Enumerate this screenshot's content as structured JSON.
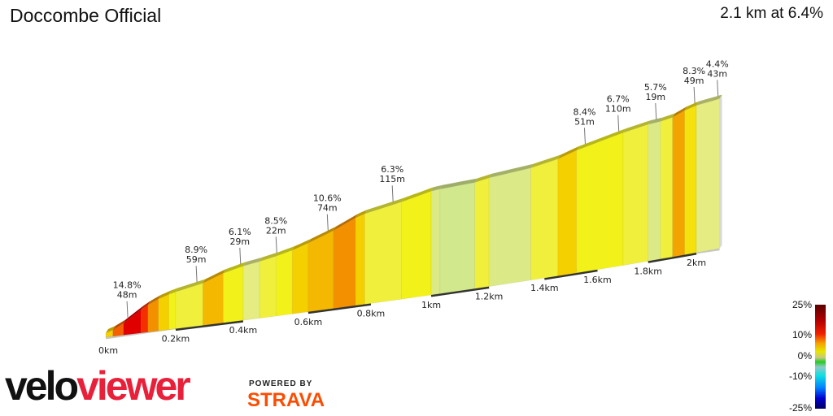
{
  "header": {
    "title": "Doccombe Official",
    "summary": "2.1 km at 6.4%"
  },
  "chart_data": {
    "type": "area",
    "title": "Doccombe Official",
    "xlabel": "",
    "ylabel": "",
    "distance_unit": "km",
    "total_distance_km": 2.1,
    "xlim": [
      0,
      2.1
    ],
    "x_ticks": [
      "0km",
      "0.2km",
      "0.4km",
      "0.6km",
      "0.8km",
      "1km",
      "1.2km",
      "1.4km",
      "1.6km",
      "1.8km",
      "2km"
    ],
    "x_tick_values": [
      0,
      0.2,
      0.4,
      0.6,
      0.8,
      1.0,
      1.2,
      1.4,
      1.6,
      1.8,
      2.0
    ],
    "segments": [
      {
        "from": 0,
        "to": 0.02,
        "grade": 8
      },
      {
        "from": 0.02,
        "to": 0.05,
        "grade": 12
      },
      {
        "from": 0.05,
        "to": 0.1,
        "grade": 16
      },
      {
        "from": 0.1,
        "to": 0.12,
        "grade": 14
      },
      {
        "from": 0.12,
        "to": 0.15,
        "grade": 11
      },
      {
        "from": 0.15,
        "to": 0.18,
        "grade": 8
      },
      {
        "from": 0.18,
        "to": 0.2,
        "grade": 6
      },
      {
        "from": 0.2,
        "to": 0.28,
        "grade": 5
      },
      {
        "from": 0.28,
        "to": 0.34,
        "grade": 9
      },
      {
        "from": 0.34,
        "to": 0.4,
        "grade": 6
      },
      {
        "from": 0.4,
        "to": 0.45,
        "grade": 4
      },
      {
        "from": 0.45,
        "to": 0.5,
        "grade": 5
      },
      {
        "from": 0.5,
        "to": 0.55,
        "grade": 6
      },
      {
        "from": 0.55,
        "to": 0.6,
        "grade": 8
      },
      {
        "from": 0.6,
        "to": 0.68,
        "grade": 9
      },
      {
        "from": 0.68,
        "to": 0.75,
        "grade": 11
      },
      {
        "from": 0.75,
        "to": 0.78,
        "grade": 8
      },
      {
        "from": 0.78,
        "to": 0.9,
        "grade": 5
      },
      {
        "from": 0.9,
        "to": 1.0,
        "grade": 6
      },
      {
        "from": 1.0,
        "to": 1.03,
        "grade": 3
      },
      {
        "from": 1.03,
        "to": 1.15,
        "grade": 2
      },
      {
        "from": 1.15,
        "to": 1.2,
        "grade": 5
      },
      {
        "from": 1.2,
        "to": 1.35,
        "grade": 3
      },
      {
        "from": 1.35,
        "to": 1.45,
        "grade": 5
      },
      {
        "from": 1.45,
        "to": 1.52,
        "grade": 8
      },
      {
        "from": 1.52,
        "to": 1.7,
        "grade": 6
      },
      {
        "from": 1.7,
        "to": 1.8,
        "grade": 5
      },
      {
        "from": 1.8,
        "to": 1.85,
        "grade": 3
      },
      {
        "from": 1.85,
        "to": 1.9,
        "grade": 5
      },
      {
        "from": 1.9,
        "to": 1.95,
        "grade": 10
      },
      {
        "from": 1.95,
        "to": 2.0,
        "grade": 7
      },
      {
        "from": 2.0,
        "to": 2.1,
        "grade": 4
      }
    ],
    "annotations": [
      {
        "at_km": 0.06,
        "grade": "14.8%",
        "length": "48m"
      },
      {
        "at_km": 0.26,
        "grade": "8.9%",
        "length": "59m"
      },
      {
        "at_km": 0.39,
        "grade": "6.1%",
        "length": "29m"
      },
      {
        "at_km": 0.5,
        "grade": "8.5%",
        "length": "22m"
      },
      {
        "at_km": 0.66,
        "grade": "10.6%",
        "length": "74m"
      },
      {
        "at_km": 0.87,
        "grade": "6.3%",
        "length": "115m"
      },
      {
        "at_km": 1.55,
        "grade": "8.4%",
        "length": "51m"
      },
      {
        "at_km": 1.68,
        "grade": "6.7%",
        "length": "110m"
      },
      {
        "at_km": 1.83,
        "grade": "5.7%",
        "length": "19m"
      },
      {
        "at_km": 1.99,
        "grade": "8.3%",
        "length": "49m"
      },
      {
        "at_km": 2.09,
        "grade": "4.4%",
        "length": "43m"
      }
    ],
    "color_scale": {
      "labels": [
        "25%",
        "10%",
        "0%",
        "-10%",
        "-25%"
      ],
      "range": [
        -25,
        25
      ]
    }
  },
  "branding": {
    "logo_part1": "velo",
    "logo_part2": "viewer",
    "powered_by": "POWERED BY",
    "strava": "STRAVA",
    "strava_color": "#fc4c02",
    "logo_color": "#e8203a"
  }
}
